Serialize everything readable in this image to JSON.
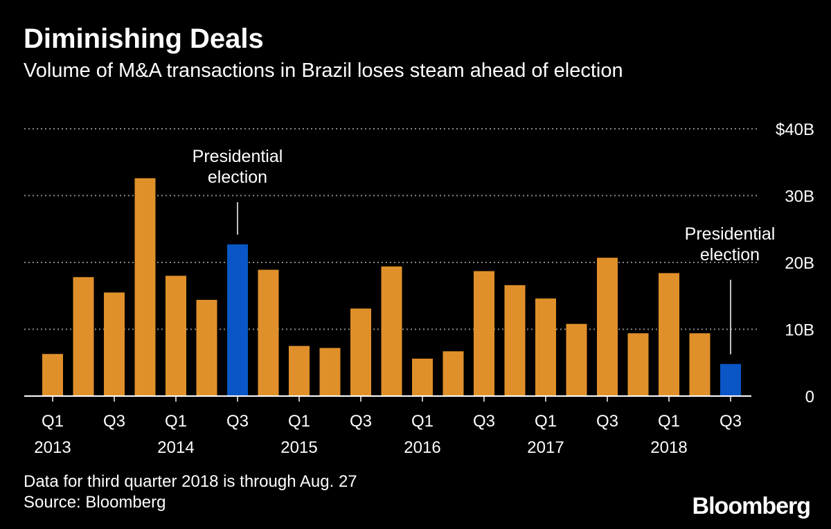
{
  "chart_data": {
    "type": "bar",
    "title": "Diminishing Deals",
    "subtitle": "Volume of M&A transactions in Brazil loses steam ahead of election",
    "categories": [
      "Q1 2013",
      "Q2 2013",
      "Q3 2013",
      "Q4 2013",
      "Q1 2014",
      "Q2 2014",
      "Q3 2014",
      "Q4 2014",
      "Q1 2015",
      "Q2 2015",
      "Q3 2015",
      "Q4 2015",
      "Q1 2016",
      "Q2 2016",
      "Q3 2016",
      "Q4 2016",
      "Q1 2017",
      "Q2 2017",
      "Q3 2017",
      "Q4 2017",
      "Q1 2018",
      "Q2 2018",
      "Q3 2018"
    ],
    "values": [
      6.3,
      17.8,
      15.5,
      32.6,
      18.0,
      14.4,
      22.7,
      18.9,
      7.5,
      7.2,
      13.1,
      19.4,
      5.6,
      6.7,
      18.7,
      16.6,
      14.6,
      10.8,
      20.7,
      9.4,
      18.4,
      9.4,
      4.8
    ],
    "highlight_indices": [
      6,
      22
    ],
    "unit": "billion USD",
    "ylim": [
      0,
      40
    ],
    "y_ticks": [
      {
        "value": 0,
        "label": "0"
      },
      {
        "value": 10,
        "label": "10B"
      },
      {
        "value": 20,
        "label": "20B"
      },
      {
        "value": 30,
        "label": "30B"
      },
      {
        "value": 40,
        "label": "$40B"
      }
    ],
    "x_tick_labels": [
      {
        "index": 0,
        "quarter": "Q1",
        "year": "2013"
      },
      {
        "index": 2,
        "quarter": "Q3",
        "year": ""
      },
      {
        "index": 4,
        "quarter": "Q1",
        "year": "2014"
      },
      {
        "index": 6,
        "quarter": "Q3",
        "year": ""
      },
      {
        "index": 8,
        "quarter": "Q1",
        "year": "2015"
      },
      {
        "index": 10,
        "quarter": "Q3",
        "year": ""
      },
      {
        "index": 12,
        "quarter": "Q1",
        "year": "2016"
      },
      {
        "index": 14,
        "quarter": "Q3",
        "year": ""
      },
      {
        "index": 16,
        "quarter": "Q1",
        "year": "2017"
      },
      {
        "index": 18,
        "quarter": "Q3",
        "year": ""
      },
      {
        "index": 20,
        "quarter": "Q1",
        "year": "2018"
      },
      {
        "index": 22,
        "quarter": "Q3",
        "year": ""
      }
    ],
    "annotations": [
      {
        "index": 6,
        "lines": [
          "Presidential",
          "election"
        ]
      },
      {
        "index": 22,
        "lines": [
          "Presidential",
          "election"
        ]
      }
    ],
    "grid": true,
    "colors": {
      "bar": "#e0902a",
      "highlight": "#0a56c6",
      "grid": "#8a8a8a",
      "background": "#000000"
    }
  },
  "footnotes": {
    "note": "Data for third quarter 2018 is through Aug. 27",
    "source": "Source: Bloomberg"
  },
  "logo": "Bloomberg"
}
